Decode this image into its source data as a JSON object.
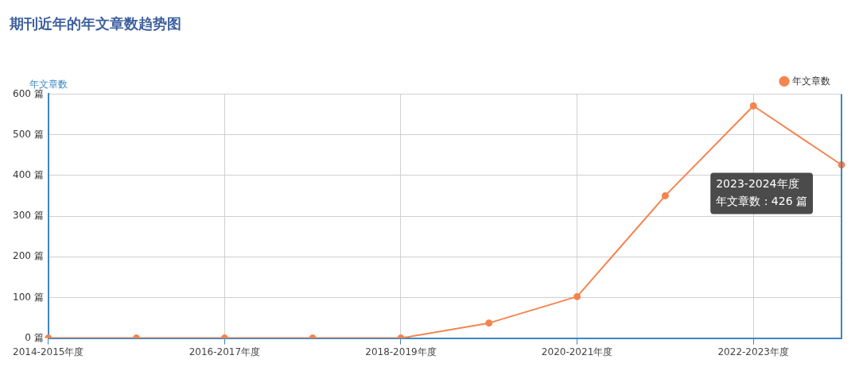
{
  "chart_data": {
    "type": "line",
    "title": "期刊近年的年文章数趋势图",
    "ylabel": "年文章数",
    "categories": [
      "2014-2015年度",
      null,
      "2016-2017年度",
      null,
      "2018-2019年度",
      null,
      "2020-2021年度",
      null,
      "2022-2023年度",
      null
    ],
    "series": [
      {
        "name": "年文章数",
        "color": "#f5844f",
        "values": [
          0,
          0,
          0,
          0,
          0,
          37,
          102,
          350,
          571,
          426
        ]
      }
    ],
    "ylim": [
      0,
      600
    ],
    "yticks": [
      {
        "value": 0,
        "label": "0 篇"
      },
      {
        "value": 100,
        "label": "100 篇"
      },
      {
        "value": 200,
        "label": "200 篇"
      },
      {
        "value": 300,
        "label": "300 篇"
      },
      {
        "value": 400,
        "label": "400 篇"
      },
      {
        "value": 500,
        "label": "500 篇"
      },
      {
        "value": 600,
        "label": "600 篇"
      }
    ],
    "annotations": [
      "2023-2024年度",
      "年文章数 : 426 篇"
    ],
    "grid": true,
    "legend": "top right",
    "marker": "circle",
    "line_style": "solid"
  }
}
